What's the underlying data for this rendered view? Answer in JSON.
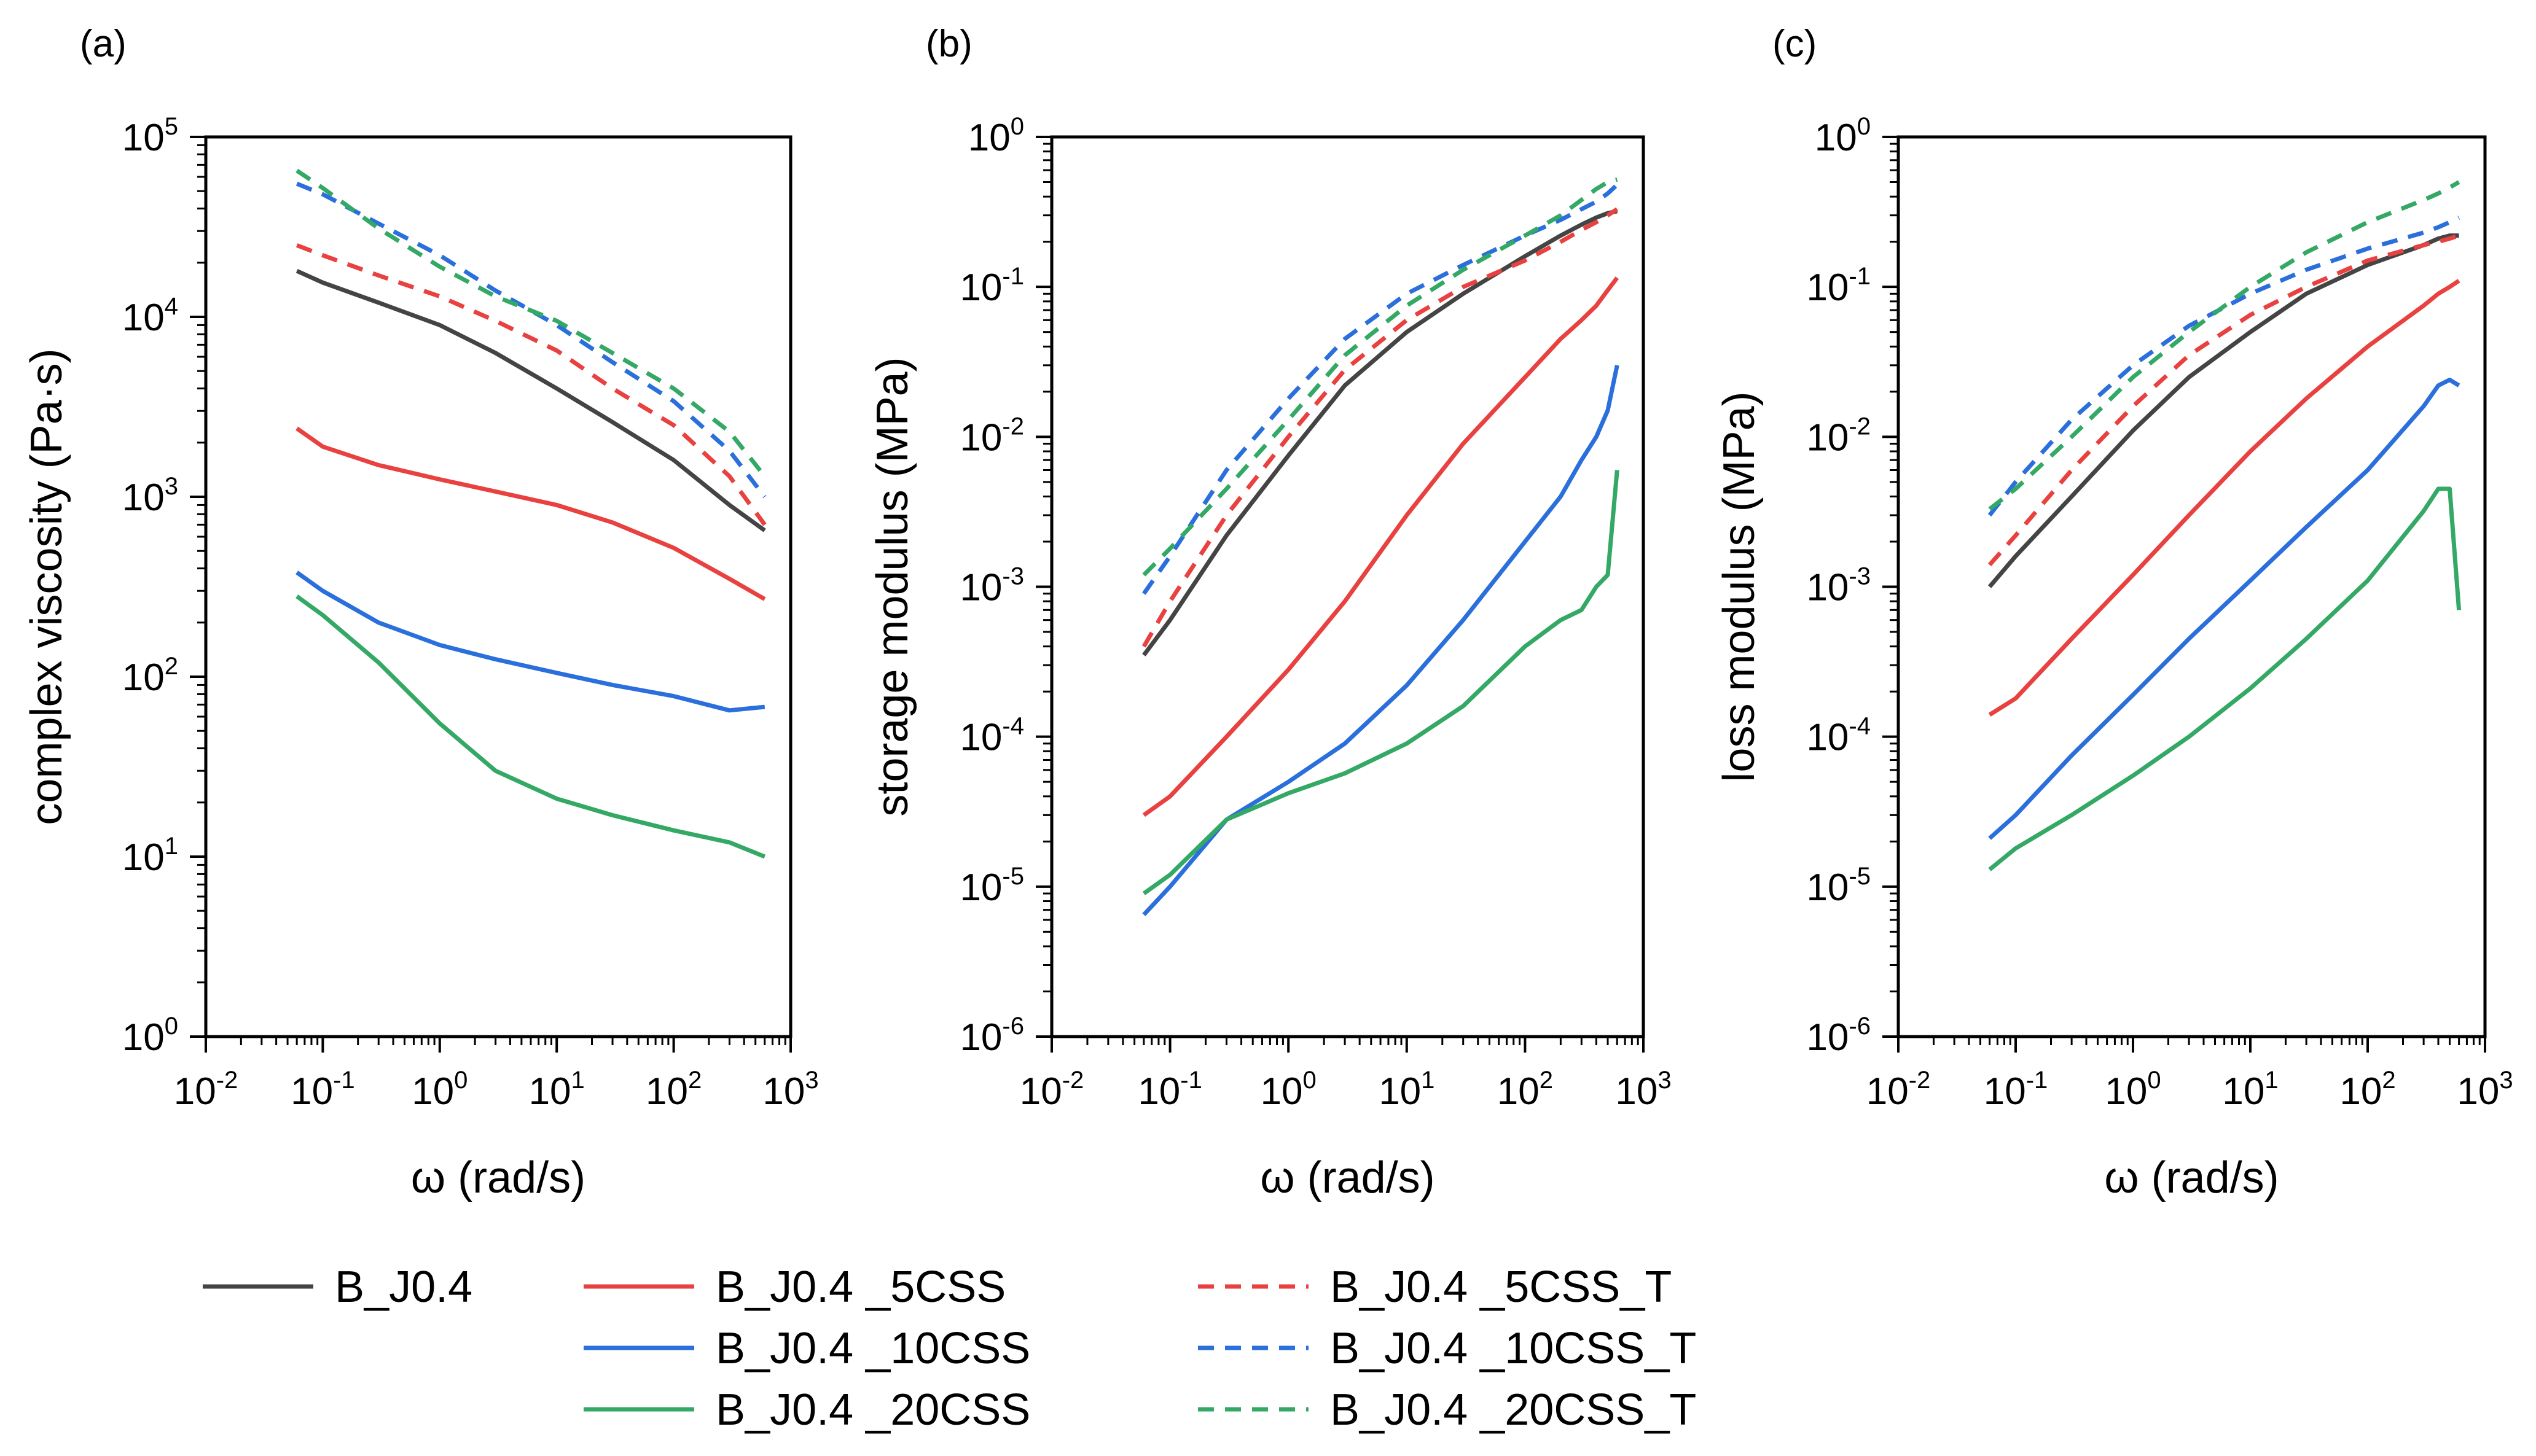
{
  "figure": {
    "legend": [
      {
        "label": "B_J0.4",
        "color": "#444444",
        "dash": "solid"
      },
      {
        "label": "B_J0.4 _5CSS",
        "color": "#e8413f",
        "dash": "solid"
      },
      {
        "label": "B_J0.4 _10CSS",
        "color": "#2a6fdb",
        "dash": "solid"
      },
      {
        "label": "B_J0.4 _20CSS",
        "color": "#34a865",
        "dash": "solid"
      },
      {
        "label": "B_J0.4 _5CSS_T",
        "color": "#e8413f",
        "dash": "dashed"
      },
      {
        "label": "B_J0.4 _10CSS_T",
        "color": "#2a6fdb",
        "dash": "dashed"
      },
      {
        "label": "B_J0.4 _20CSS_T",
        "color": "#34a865",
        "dash": "dashed"
      }
    ]
  },
  "chart_data": [
    {
      "type": "line",
      "panel_label": "(a)",
      "xlabel": "ω (rad/s)",
      "ylabel": "complex viscosity (Pa·s)",
      "xscale": "log",
      "yscale": "log",
      "xlim": [
        0.01,
        1000
      ],
      "ylim": [
        1,
        100000
      ],
      "xticks": [
        {
          "base": "10",
          "exp": "-2"
        },
        {
          "base": "10",
          "exp": "-1"
        },
        {
          "base": "10",
          "exp": "0"
        },
        {
          "base": "10",
          "exp": "1"
        },
        {
          "base": "10",
          "exp": "2"
        },
        {
          "base": "10",
          "exp": "3"
        }
      ],
      "yticks": [
        {
          "base": "10",
          "exp": "0"
        },
        {
          "base": "10",
          "exp": "1"
        },
        {
          "base": "10",
          "exp": "2"
        },
        {
          "base": "10",
          "exp": "3"
        },
        {
          "base": "10",
          "exp": "4"
        },
        {
          "base": "10",
          "exp": "5"
        }
      ],
      "x": [
        0.06,
        0.1,
        0.3,
        1,
        3,
        10,
        30,
        100,
        300,
        600
      ],
      "series": [
        {
          "name": "B_J0.4",
          "values": [
            18000,
            15500,
            12000,
            9000,
            6300,
            4000,
            2600,
            1600,
            900,
            650
          ]
        },
        {
          "name": "B_J0.4 _5CSS",
          "values": [
            2400,
            1900,
            1500,
            1250,
            1070,
            900,
            720,
            520,
            350,
            270
          ]
        },
        {
          "name": "B_J0.4 _10CSS",
          "values": [
            380,
            300,
            200,
            150,
            125,
            105,
            90,
            78,
            65,
            68
          ]
        },
        {
          "name": "B_J0.4 _20CSS",
          "values": [
            280,
            220,
            120,
            55,
            30,
            21,
            17,
            14,
            12,
            10
          ]
        },
        {
          "name": "B_J0.4 _5CSS_T",
          "values": [
            25000,
            22000,
            17000,
            13000,
            9500,
            6500,
            4000,
            2500,
            1300,
            700
          ]
        },
        {
          "name": "B_J0.4 _10CSS_T",
          "values": [
            55000,
            48000,
            33000,
            22000,
            14000,
            9000,
            5600,
            3400,
            1800,
            1000
          ]
        },
        {
          "name": "B_J0.4 _20CSS_T",
          "values": [
            65000,
            52000,
            31000,
            19000,
            13000,
            9500,
            6300,
            4000,
            2300,
            1300
          ]
        }
      ]
    },
    {
      "type": "line",
      "panel_label": "(b)",
      "xlabel": "ω (rad/s)",
      "ylabel": "storage modulus (MPa)",
      "xscale": "log",
      "yscale": "log",
      "xlim": [
        0.01,
        1000
      ],
      "ylim": [
        1e-06,
        1
      ],
      "xticks": [
        {
          "base": "10",
          "exp": "-2"
        },
        {
          "base": "10",
          "exp": "-1"
        },
        {
          "base": "10",
          "exp": "0"
        },
        {
          "base": "10",
          "exp": "1"
        },
        {
          "base": "10",
          "exp": "2"
        },
        {
          "base": "10",
          "exp": "3"
        }
      ],
      "yticks": [
        {
          "base": "10",
          "exp": "-6"
        },
        {
          "base": "10",
          "exp": "-5"
        },
        {
          "base": "10",
          "exp": "-4"
        },
        {
          "base": "10",
          "exp": "-3"
        },
        {
          "base": "10",
          "exp": "-2"
        },
        {
          "base": "10",
          "exp": "-1"
        },
        {
          "base": "10",
          "exp": "0"
        }
      ],
      "x": [
        0.06,
        0.1,
        0.3,
        1,
        3,
        10,
        30,
        100,
        200,
        300,
        400,
        500,
        600
      ],
      "series": [
        {
          "name": "B_J0.4",
          "values": [
            0.00035,
            0.0006,
            0.0022,
            0.0075,
            0.022,
            0.05,
            0.09,
            0.16,
            0.22,
            0.26,
            0.29,
            0.31,
            0.32
          ]
        },
        {
          "name": "B_J0.4 _5CSS",
          "values": [
            3e-05,
            4e-05,
            0.0001,
            0.00028,
            0.0008,
            0.003,
            0.009,
            0.025,
            0.045,
            0.06,
            0.075,
            0.095,
            0.115
          ]
        },
        {
          "name": "B_J0.4 _10CSS",
          "values": [
            6.5e-06,
            1e-05,
            2.8e-05,
            5e-05,
            9e-05,
            0.00022,
            0.0006,
            0.002,
            0.004,
            0.007,
            0.01,
            0.015,
            0.03
          ]
        },
        {
          "name": "B_J0.4 _20CSS",
          "values": [
            9e-06,
            1.2e-05,
            2.8e-05,
            4.2e-05,
            5.7e-05,
            9e-05,
            0.00016,
            0.0004,
            0.0006,
            0.0007,
            0.001,
            0.0012,
            0.006
          ]
        },
        {
          "name": "B_J0.4 _5CSS_T",
          "values": [
            0.0004,
            0.0008,
            0.003,
            0.01,
            0.028,
            0.06,
            0.1,
            0.15,
            0.2,
            0.24,
            0.27,
            0.3,
            0.33
          ]
        },
        {
          "name": "B_J0.4 _10CSS_T",
          "values": [
            0.0009,
            0.0016,
            0.006,
            0.018,
            0.045,
            0.09,
            0.14,
            0.22,
            0.28,
            0.33,
            0.37,
            0.42,
            0.48
          ]
        },
        {
          "name": "B_J0.4 _20CSS_T",
          "values": [
            0.0012,
            0.0018,
            0.0045,
            0.013,
            0.035,
            0.075,
            0.13,
            0.22,
            0.3,
            0.38,
            0.45,
            0.5,
            0.52
          ]
        }
      ]
    },
    {
      "type": "line",
      "panel_label": "(c)",
      "xlabel": "ω (rad/s)",
      "ylabel": "loss modulus (MPa)",
      "xscale": "log",
      "yscale": "log",
      "xlim": [
        0.01,
        1000
      ],
      "ylim": [
        1e-06,
        1
      ],
      "xticks": [
        {
          "base": "10",
          "exp": "-2"
        },
        {
          "base": "10",
          "exp": "-1"
        },
        {
          "base": "10",
          "exp": "0"
        },
        {
          "base": "10",
          "exp": "1"
        },
        {
          "base": "10",
          "exp": "2"
        },
        {
          "base": "10",
          "exp": "3"
        }
      ],
      "yticks": [
        {
          "base": "10",
          "exp": "-6"
        },
        {
          "base": "10",
          "exp": "-5"
        },
        {
          "base": "10",
          "exp": "-4"
        },
        {
          "base": "10",
          "exp": "-3"
        },
        {
          "base": "10",
          "exp": "-2"
        },
        {
          "base": "10",
          "exp": "-1"
        },
        {
          "base": "10",
          "exp": "0"
        }
      ],
      "x": [
        0.06,
        0.1,
        0.3,
        1,
        3,
        10,
        30,
        100,
        300,
        400,
        500,
        600
      ],
      "series": [
        {
          "name": "B_J0.4",
          "values": [
            0.001,
            0.0016,
            0.004,
            0.011,
            0.025,
            0.05,
            0.09,
            0.14,
            0.19,
            0.21,
            0.22,
            0.22
          ]
        },
        {
          "name": "B_J0.4 _5CSS",
          "values": [
            0.00014,
            0.00018,
            0.00045,
            0.0012,
            0.003,
            0.008,
            0.018,
            0.04,
            0.075,
            0.09,
            0.1,
            0.11
          ]
        },
        {
          "name": "B_J0.4 _10CSS",
          "values": [
            2.1e-05,
            3e-05,
            7.5e-05,
            0.00019,
            0.00045,
            0.0011,
            0.0025,
            0.006,
            0.016,
            0.022,
            0.024,
            0.022
          ]
        },
        {
          "name": "B_J0.4 _20CSS",
          "values": [
            1.3e-05,
            1.8e-05,
            3e-05,
            5.5e-05,
            0.0001,
            0.00021,
            0.00045,
            0.0011,
            0.0032,
            0.0045,
            0.0045,
            0.0007
          ]
        },
        {
          "name": "B_J0.4 _5CSS_T",
          "values": [
            0.0014,
            0.0022,
            0.006,
            0.016,
            0.035,
            0.065,
            0.1,
            0.15,
            0.19,
            0.2,
            0.21,
            0.22
          ]
        },
        {
          "name": "B_J0.4 _10CSS_T",
          "values": [
            0.003,
            0.005,
            0.013,
            0.03,
            0.055,
            0.09,
            0.13,
            0.18,
            0.23,
            0.25,
            0.27,
            0.29
          ]
        },
        {
          "name": "B_J0.4 _20CSS_T",
          "values": [
            0.0033,
            0.0045,
            0.01,
            0.025,
            0.05,
            0.1,
            0.17,
            0.27,
            0.38,
            0.42,
            0.46,
            0.5
          ]
        }
      ]
    }
  ]
}
